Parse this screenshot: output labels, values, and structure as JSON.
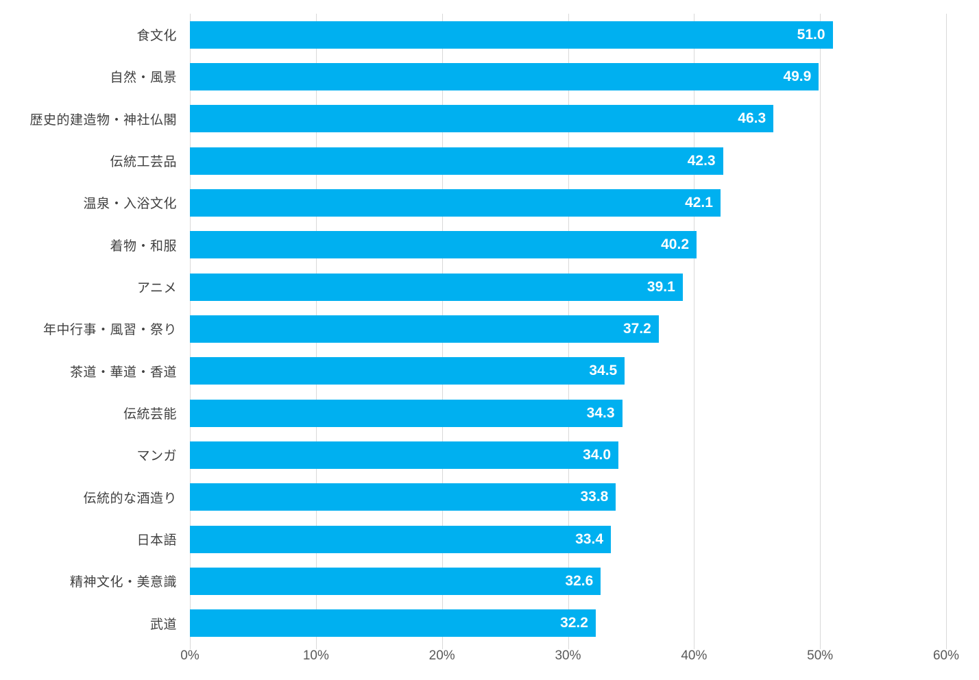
{
  "chart_data": {
    "type": "bar",
    "orientation": "horizontal",
    "title": "",
    "xlabel": "",
    "ylabel": "",
    "xlim": [
      0,
      60
    ],
    "x_tick_labels": [
      "0%",
      "10%",
      "20%",
      "30%",
      "40%",
      "50%",
      "60%"
    ],
    "grid": "vertical",
    "legend": "none",
    "categories": [
      "食文化",
      "自然・風景",
      "歴史的建造物・神社仏閣",
      "伝統工芸品",
      "温泉・入浴文化",
      "着物・和服",
      "アニメ",
      "年中行事・風習・祭り",
      "茶道・華道・香道",
      "伝統芸能",
      "マンガ",
      "伝統的な酒造り",
      "日本語",
      "精神文化・美意識",
      "武道"
    ],
    "values": [
      51.0,
      49.9,
      46.3,
      42.3,
      42.1,
      40.2,
      39.1,
      37.2,
      34.5,
      34.3,
      34.0,
      33.8,
      33.4,
      32.6,
      32.2
    ],
    "value_labels": [
      "51.0",
      "49.9",
      "46.3",
      "42.3",
      "42.1",
      "40.2",
      "39.1",
      "37.2",
      "34.5",
      "34.3",
      "34.0",
      "33.8",
      "33.4",
      "32.6",
      "32.2"
    ],
    "colors": {
      "bar": "#00B0F0",
      "value_label": "#FFFFFF",
      "category_label": "#404040",
      "axis_tick_label": "#595959",
      "gridline": "#D9D9D9",
      "background": "#FFFFFF"
    }
  }
}
